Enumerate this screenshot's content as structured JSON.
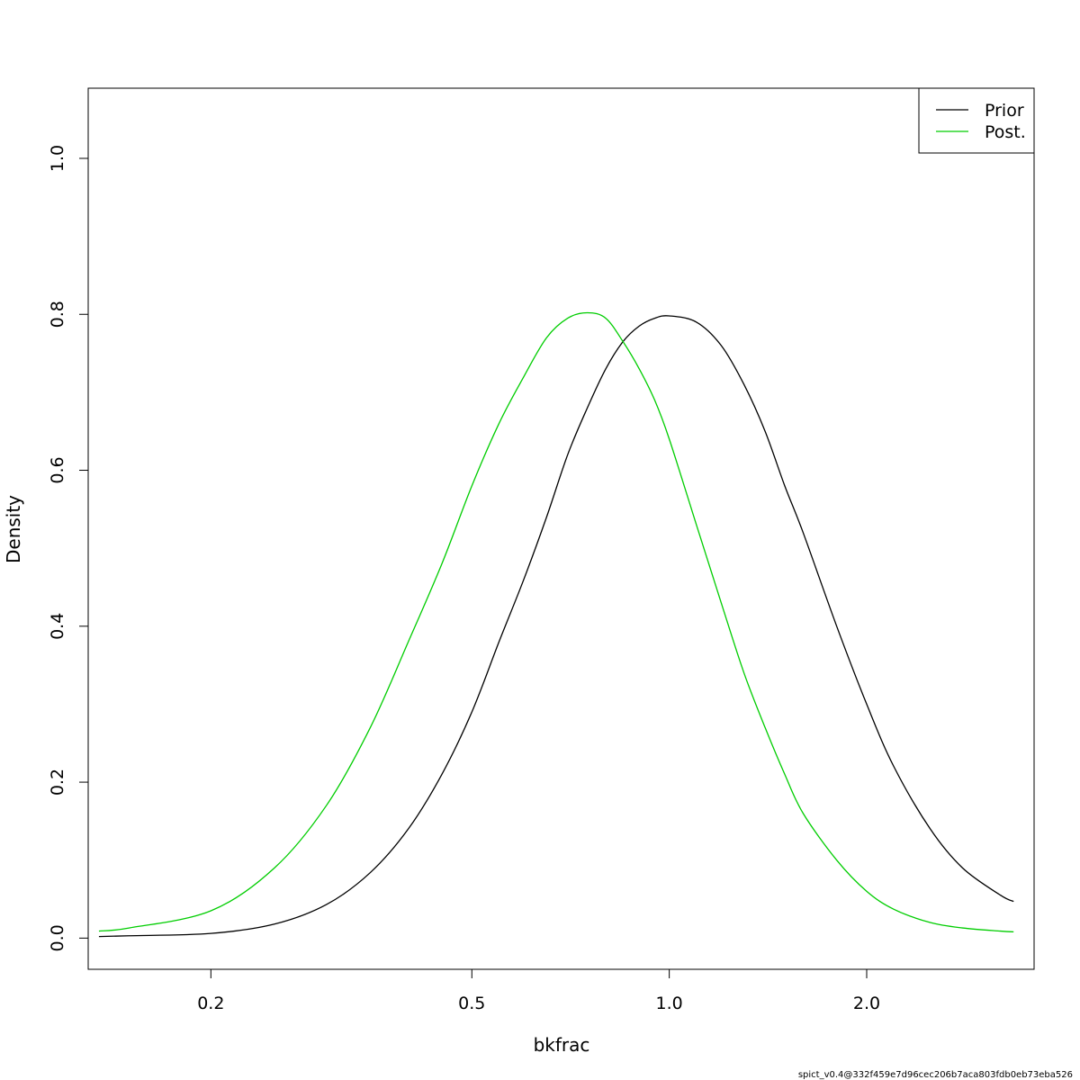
{
  "chart_data": {
    "type": "line",
    "title": "",
    "xlabel": "bkfrac",
    "ylabel": "Density",
    "x_scale": "log",
    "xlim": [
      0.13,
      3.6
    ],
    "ylim": [
      -0.04,
      1.09
    ],
    "x_ticks": [
      0.2,
      0.5,
      1.0,
      2.0
    ],
    "x_tick_labels": [
      "0.2",
      "0.5",
      "1.0",
      "2.0"
    ],
    "y_ticks": [
      0.0,
      0.2,
      0.4,
      0.6,
      0.8,
      1.0
    ],
    "y_tick_labels": [
      "0.0",
      "0.2",
      "0.4",
      "0.6",
      "0.8",
      "1.0"
    ],
    "grid": false,
    "legend_position": "top-right",
    "series": [
      {
        "name": "Prior",
        "color": "#000000",
        "x": [
          0.135,
          0.15,
          0.2,
          0.25,
          0.3,
          0.35,
          0.4,
          0.45,
          0.5,
          0.55,
          0.6,
          0.65,
          0.7,
          0.75,
          0.8,
          0.85,
          0.9,
          0.95,
          1.0,
          1.1,
          1.2,
          1.3,
          1.4,
          1.5,
          1.6,
          1.8,
          2.0,
          2.2,
          2.5,
          2.8,
          3.2,
          3.35
        ],
        "y": [
          0.002,
          0.003,
          0.006,
          0.018,
          0.043,
          0.084,
          0.14,
          0.21,
          0.29,
          0.38,
          0.46,
          0.54,
          0.62,
          0.68,
          0.73,
          0.765,
          0.785,
          0.795,
          0.798,
          0.79,
          0.76,
          0.71,
          0.65,
          0.58,
          0.52,
          0.4,
          0.3,
          0.22,
          0.14,
          0.09,
          0.055,
          0.047
        ]
      },
      {
        "name": "Post.",
        "color": "#00cd00",
        "x": [
          0.135,
          0.15,
          0.2,
          0.25,
          0.3,
          0.35,
          0.4,
          0.45,
          0.5,
          0.55,
          0.6,
          0.65,
          0.7,
          0.75,
          0.8,
          0.85,
          0.9,
          0.95,
          1.0,
          1.1,
          1.2,
          1.3,
          1.4,
          1.5,
          1.6,
          1.8,
          2.0,
          2.2,
          2.5,
          2.8,
          3.2,
          3.35
        ],
        "y": [
          0.009,
          0.013,
          0.035,
          0.09,
          0.17,
          0.27,
          0.38,
          0.48,
          0.58,
          0.66,
          0.72,
          0.77,
          0.795,
          0.802,
          0.795,
          0.765,
          0.73,
          0.69,
          0.64,
          0.53,
          0.43,
          0.34,
          0.27,
          0.21,
          0.16,
          0.1,
          0.06,
          0.037,
          0.02,
          0.013,
          0.009,
          0.008
        ]
      }
    ],
    "footer_note": "spict_v0.4@332f459e7d96cec206b7aca803fdb0eb73eba526"
  }
}
